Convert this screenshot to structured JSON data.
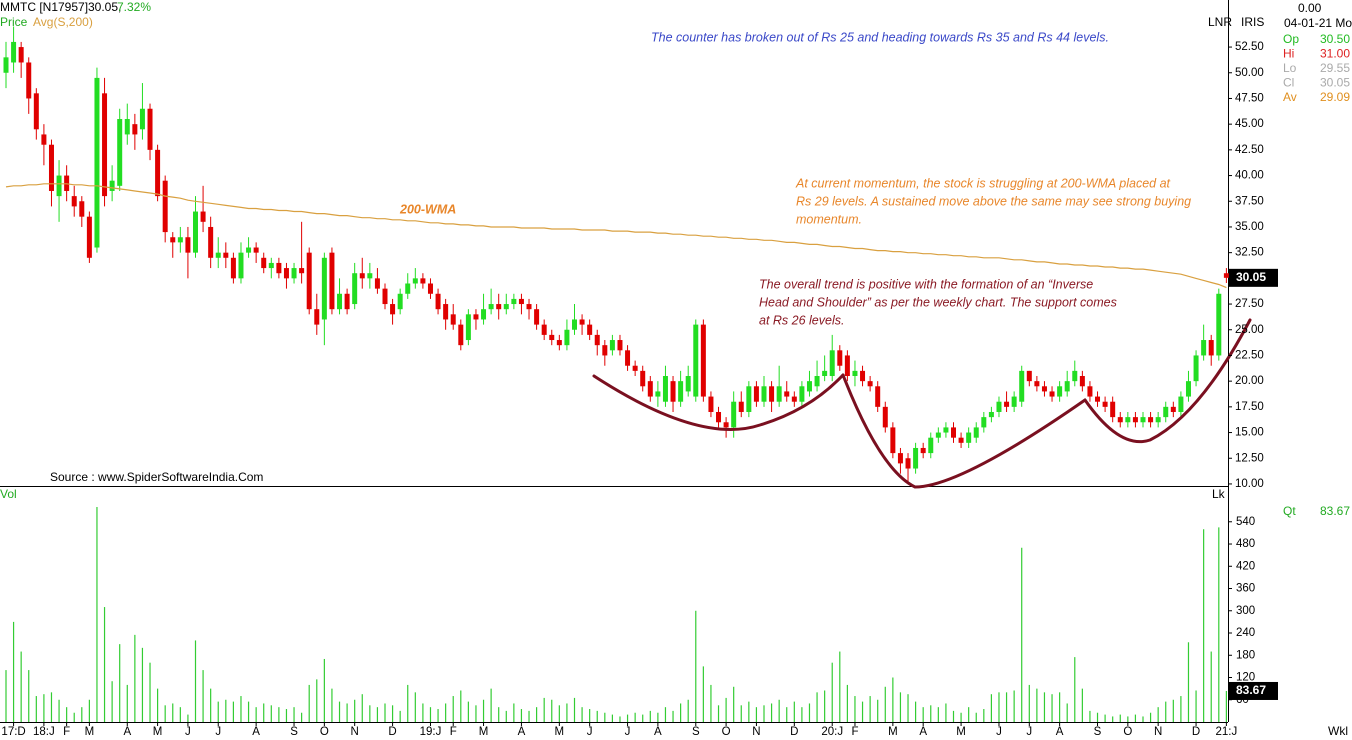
{
  "header": {
    "symbol": "MMTC [N17957]",
    "price": "30.05,",
    "change": "7.32%",
    "price_label": "Price",
    "avg_label": "Avg(S,200)",
    "vol_label": "Vol",
    "lnr": "LNR",
    "iris": "IRIS",
    "zero": "0.00",
    "date": "04-01-21 Mo",
    "lk": "Lk",
    "qt": "Qt",
    "qt_value": "83.67",
    "period": "Wkl",
    "source": "Source : www.SpiderSoftwareIndia.Com"
  },
  "info": [
    {
      "label": "Op",
      "value": "30.50",
      "color": "#22bb22"
    },
    {
      "label": "Hi",
      "value": "31.00",
      "color": "#dd2222"
    },
    {
      "label": "Lo",
      "value": "29.55",
      "color": "#aaaaaa"
    },
    {
      "label": "Cl",
      "value": "30.05",
      "color": "#aaaaaa"
    },
    {
      "label": "Av",
      "value": "29.09",
      "color": "#e09020"
    }
  ],
  "chart_data": {
    "type": "candlestick",
    "annotations": [
      "The counter has broken out of Rs 25 and heading towards Rs 35 and Rs 44 levels.",
      "At current momentum, the stock is struggling at 200-WMA placed at",
      "Rs 29 levels. A sustained move above the same may see strong buying",
      "momentum.",
      "The overall trend is positive with the formation of an “Inverse",
      "Head and Shoulder” as per the weekly chart. The support comes",
      "at Rs 26 levels.",
      "200-WMA"
    ],
    "categories": [
      null,
      "17:D",
      null,
      null,
      null,
      "18:J",
      null,
      null,
      "F",
      null,
      null,
      "M",
      null,
      null,
      null,
      null,
      "A",
      null,
      null,
      null,
      "M",
      null,
      null,
      null,
      "J",
      null,
      null,
      null,
      "J",
      null,
      null,
      null,
      null,
      "A",
      null,
      null,
      null,
      null,
      "S",
      null,
      null,
      null,
      "O",
      null,
      null,
      null,
      "N",
      null,
      null,
      null,
      null,
      "D",
      null,
      null,
      null,
      null,
      "19:J",
      null,
      null,
      "F",
      null,
      null,
      null,
      "M",
      null,
      null,
      null,
      null,
      "A",
      null,
      null,
      null,
      null,
      "M",
      null,
      null,
      null,
      "J",
      null,
      null,
      null,
      null,
      "J",
      null,
      null,
      null,
      "A",
      null,
      null,
      null,
      null,
      "S",
      null,
      null,
      null,
      "O",
      null,
      null,
      null,
      "N",
      null,
      null,
      null,
      null,
      "D",
      null,
      null,
      null,
      null,
      "20:J",
      null,
      null,
      "F",
      null,
      null,
      null,
      null,
      "M",
      null,
      null,
      null,
      "A",
      null,
      null,
      null,
      null,
      "M",
      null,
      null,
      null,
      null,
      "J",
      null,
      null,
      null,
      "J",
      null,
      null,
      null,
      "A",
      null,
      null,
      null,
      null,
      "S",
      null,
      null,
      null,
      "O",
      null,
      null,
      null,
      "N",
      null,
      null,
      null,
      null,
      "D",
      null,
      null,
      null,
      "21:J"
    ],
    "open": [
      50,
      51,
      52.5,
      51,
      48,
      44,
      43,
      38,
      40,
      38,
      37.5,
      36,
      33,
      48,
      38.5,
      39,
      44,
      45,
      44.5,
      46.5,
      42.5,
      39.5,
      34,
      33.5,
      34,
      32.5,
      36.5,
      35,
      32,
      32.5,
      32,
      30,
      32.5,
      33,
      32,
      31,
      31.5,
      31,
      30,
      31,
      32.5,
      27,
      26,
      32.5,
      27,
      28.5,
      27.5,
      30.5,
      30,
      30,
      29,
      27.5,
      27,
      28.5,
      29.5,
      30,
      29.5,
      28.5,
      27.5,
      26.5,
      25.5,
      24,
      26.5,
      26,
      27,
      27.5,
      27,
      27.5,
      28,
      27.5,
      27,
      25.5,
      24.5,
      24,
      23.5,
      25,
      26,
      25.5,
      24.5,
      23.5,
      23,
      24,
      23,
      21.5,
      21,
      20,
      18.5,
      18,
      20,
      18,
      19,
      18.5,
      25.5,
      18.5,
      17,
      16,
      15.5,
      18,
      17,
      19.5,
      18,
      19.5,
      18,
      19,
      18.5,
      18,
      19,
      19.5,
      20.5,
      20.5,
      23,
      22.5,
      20.5,
      21,
      20,
      19.5,
      17.5,
      15.5,
      13,
      12.5,
      11.5,
      13.5,
      13,
      14.5,
      15,
      15.5,
      14.5,
      14,
      14.5,
      15.5,
      16.5,
      17,
      18,
      17.5,
      18,
      21,
      20,
      19.5,
      19,
      18.5,
      19,
      20,
      20.5,
      19.5,
      18.5,
      18,
      18,
      16.5,
      16,
      16.5,
      16,
      16.5,
      16,
      16.5,
      17.5,
      17,
      18.5,
      20,
      22.5,
      24,
      22.5,
      30.5
    ],
    "high": [
      53,
      54.5,
      53,
      51.5,
      48.5,
      45,
      43.5,
      41.5,
      41,
      39,
      38,
      36.5,
      50.5,
      49.5,
      41,
      46.5,
      47,
      46,
      49,
      47,
      43,
      40,
      34.5,
      35,
      35,
      38,
      39,
      36,
      34,
      33.5,
      32.5,
      33.5,
      34,
      33.5,
      32.5,
      32,
      32,
      31.5,
      31.5,
      35.5,
      33,
      28.5,
      32.5,
      33,
      30,
      29,
      31.5,
      32,
      31.5,
      31,
      29.5,
      28,
      29,
      30.5,
      31,
      30.5,
      30,
      29,
      28,
      27.5,
      26,
      27,
      27,
      28.5,
      29,
      28.5,
      28.5,
      28.5,
      28.5,
      28,
      27.5,
      26,
      25,
      24.5,
      26,
      27.5,
      26.5,
      26,
      25,
      24,
      24.5,
      24.5,
      23.5,
      22,
      21.5,
      20.5,
      20,
      21.5,
      20.5,
      21,
      21.5,
      26,
      26,
      19,
      17.5,
      16.5,
      19,
      19,
      20,
      20,
      20.5,
      20,
      21.5,
      20,
      19,
      20,
      21,
      22,
      22.5,
      24.5,
      23.5,
      23,
      22,
      21.5,
      20.5,
      20,
      18,
      16,
      13.5,
      13,
      14,
      14,
      15,
      15.5,
      16,
      16,
      15,
      15.5,
      16,
      17,
      17.5,
      18.5,
      19,
      19,
      21.5,
      21,
      20.5,
      20,
      19.5,
      20,
      21,
      22,
      21,
      20,
      19,
      18.5,
      18.5,
      17,
      17,
      17,
      17,
      17,
      17,
      18,
      18,
      19,
      21,
      23,
      25.5,
      24.5,
      29,
      31
    ],
    "low": [
      48.5,
      50,
      49.5,
      46,
      43.5,
      41,
      37,
      35.5,
      37.5,
      36,
      35,
      31.5,
      32.5,
      37,
      37.5,
      38.5,
      43,
      42.5,
      43.5,
      41.5,
      37.5,
      33.5,
      32,
      32.5,
      30,
      32,
      34.5,
      31,
      31,
      31,
      29.5,
      29.5,
      32,
      31.5,
      30.5,
      30,
      30,
      29,
      29.5,
      29.5,
      26.5,
      24.5,
      23.5,
      26.5,
      26.5,
      26.5,
      27,
      29,
      29,
      28.5,
      27,
      25.5,
      26.5,
      28,
      29,
      29,
      28,
      26.5,
      25,
      25,
      23,
      23.5,
      25,
      25.5,
      26.5,
      26,
      26.5,
      27,
      26.5,
      26,
      25,
      24,
      23.5,
      23,
      23,
      24.5,
      24.5,
      24,
      22.5,
      21.5,
      22.5,
      22.5,
      21,
      20.5,
      19,
      18,
      17.5,
      17.5,
      17,
      17.5,
      18.5,
      18,
      18,
      16.5,
      15.5,
      14.5,
      14.5,
      16.5,
      16.5,
      17.5,
      17.5,
      17,
      17.5,
      18,
      17.5,
      17.5,
      18.5,
      19,
      20,
      20,
      21,
      20,
      19.5,
      19.5,
      19,
      17,
      15,
      12.5,
      11,
      10.2,
      11,
      12.5,
      12.5,
      14,
      14.5,
      14,
      13.5,
      13.5,
      14,
      15,
      16,
      16.5,
      17,
      17,
      17.5,
      19.5,
      19,
      18.5,
      18,
      18,
      18.5,
      19.5,
      19,
      18,
      17.5,
      17,
      16,
      15.5,
      15.5,
      15.5,
      15.5,
      15.5,
      15.5,
      16,
      16.5,
      16.5,
      18,
      19.5,
      22,
      21.5,
      22,
      29.55
    ],
    "close": [
      51.5,
      53,
      51,
      47.5,
      44.5,
      43,
      38.5,
      40,
      38.5,
      37,
      36,
      32,
      49.5,
      38,
      39.5,
      45.5,
      45.5,
      44,
      46.5,
      42.5,
      38,
      34.5,
      33.5,
      34,
      32.5,
      36.5,
      35.5,
      32,
      32.5,
      32,
      30,
      32.5,
      33,
      32.5,
      31,
      31.5,
      30.5,
      30,
      31,
      30.5,
      27,
      25.5,
      32,
      27,
      28.5,
      27,
      30.5,
      30,
      30.5,
      29,
      27.5,
      26.5,
      28.5,
      29.5,
      30,
      29.5,
      28.5,
      27,
      26,
      25.5,
      23.5,
      26.5,
      26,
      27,
      27.5,
      27,
      27.5,
      28,
      27.5,
      27,
      25.5,
      24.5,
      24,
      23.5,
      25,
      26,
      25.5,
      24.5,
      23.5,
      22.5,
      24,
      23,
      21.5,
      21,
      19.5,
      18.5,
      19,
      20.5,
      18,
      20,
      20.5,
      25.5,
      18.5,
      17,
      16,
      15.5,
      18,
      17,
      19.5,
      18,
      19.5,
      18,
      19.5,
      18.5,
      18,
      19.5,
      20,
      20.5,
      21,
      23,
      21.5,
      20.5,
      21,
      20,
      19.5,
      17.5,
      15.5,
      13,
      12,
      11.5,
      13.5,
      13,
      14.5,
      15,
      15.5,
      14.5,
      14,
      15,
      15.5,
      16.5,
      17,
      18,
      17.5,
      18.5,
      21,
      20,
      19.5,
      19,
      18.5,
      19.5,
      20,
      21,
      19.5,
      18.5,
      18,
      17.5,
      16.5,
      16,
      16.5,
      16,
      16.5,
      16,
      16.5,
      17.5,
      17,
      18.5,
      20,
      22.5,
      24,
      22.5,
      28.5,
      30.05
    ],
    "up_color": "#22dd22",
    "down_color": "#e00000",
    "name": "Price",
    "series": [
      {
        "name": "Avg(S,200)",
        "color": "#d9a040",
        "values": [
          38.9,
          39.0,
          39.0,
          39.1,
          39.1,
          39.2,
          39.2,
          39.2,
          39.2,
          39.1,
          39.1,
          39.0,
          39.0,
          38.9,
          38.8,
          38.7,
          38.6,
          38.5,
          38.4,
          38.3,
          38.2,
          38.0,
          37.9,
          37.8,
          37.6,
          37.5,
          37.4,
          37.3,
          37.2,
          37.1,
          37.0,
          36.9,
          36.8,
          36.8,
          36.7,
          36.7,
          36.6,
          36.6,
          36.5,
          36.5,
          36.4,
          36.3,
          36.3,
          36.2,
          36.1,
          36.1,
          36.0,
          35.9,
          35.9,
          35.8,
          35.8,
          35.7,
          35.7,
          35.6,
          35.6,
          35.5,
          35.4,
          35.4,
          35.3,
          35.3,
          35.2,
          35.2,
          35.1,
          35.1,
          35.0,
          35.0,
          35.0,
          35.0,
          34.9,
          34.9,
          34.9,
          34.9,
          34.8,
          34.8,
          34.8,
          34.8,
          34.7,
          34.7,
          34.7,
          34.7,
          34.6,
          34.6,
          34.6,
          34.5,
          34.5,
          34.5,
          34.4,
          34.4,
          34.3,
          34.3,
          34.2,
          34.2,
          34.1,
          34.1,
          34.0,
          34.0,
          33.9,
          33.9,
          33.8,
          33.8,
          33.7,
          33.7,
          33.6,
          33.5,
          33.5,
          33.4,
          33.3,
          33.3,
          33.2,
          33.1,
          33.1,
          33.0,
          32.9,
          32.9,
          32.8,
          32.7,
          32.7,
          32.6,
          32.6,
          32.5,
          32.5,
          32.4,
          32.4,
          32.3,
          32.3,
          32.2,
          32.2,
          32.1,
          32.1,
          32.0,
          32.0,
          32.0,
          31.9,
          31.8,
          31.8,
          31.7,
          31.6,
          31.6,
          31.5,
          31.4,
          31.4,
          31.3,
          31.3,
          31.2,
          31.2,
          31.1,
          31.1,
          31.0,
          31.0,
          30.9,
          30.9,
          30.8,
          30.7,
          30.6,
          30.5,
          30.4,
          30.2,
          30.0,
          29.8,
          29.6,
          29.4,
          29.1
        ]
      }
    ],
    "ylim": [
      9.8,
      56.3
    ],
    "yticks": [
      {
        "value": 10,
        "label": "10.00"
      },
      {
        "value": 12.5,
        "label": "12.50"
      },
      {
        "value": 15,
        "label": "15.00"
      },
      {
        "value": 17.5,
        "label": "17.50"
      },
      {
        "value": 20,
        "label": "20.00"
      },
      {
        "value": 22.5,
        "label": "22.50"
      },
      {
        "value": 25,
        "label": "25.00"
      },
      {
        "value": 27.5,
        "label": "27.50"
      },
      {
        "value": 30,
        "label": "30.00"
      },
      {
        "value": 32.5,
        "label": "32.50"
      },
      {
        "value": 35,
        "label": "35.00"
      },
      {
        "value": 37.5,
        "label": "37.50"
      },
      {
        "value": 40,
        "label": "40.00"
      },
      {
        "value": 42.5,
        "label": "42.50"
      },
      {
        "value": 45,
        "label": "45.00"
      },
      {
        "value": 47.5,
        "label": "47.50"
      },
      {
        "value": 50,
        "label": "50.00"
      },
      {
        "value": 52.5,
        "label": "52.50"
      }
    ],
    "volume": {
      "color": "#33cc33",
      "ylim": [
        0,
        623
      ],
      "yticks": [
        60,
        120,
        180,
        240,
        300,
        360,
        420,
        480,
        540
      ],
      "values": [
        140,
        270,
        190,
        140,
        70,
        75,
        80,
        60,
        40,
        25,
        40,
        60,
        580,
        310,
        110,
        210,
        100,
        235,
        200,
        160,
        90,
        45,
        50,
        40,
        20,
        220,
        140,
        90,
        55,
        60,
        55,
        70,
        55,
        40,
        50,
        45,
        40,
        35,
        40,
        25,
        100,
        115,
        170,
        90,
        55,
        50,
        60,
        75,
        45,
        40,
        50,
        45,
        30,
        100,
        80,
        50,
        40,
        35,
        50,
        70,
        85,
        55,
        45,
        60,
        90,
        40,
        30,
        50,
        35,
        30,
        40,
        65,
        60,
        45,
        50,
        65,
        40,
        35,
        30,
        25,
        20,
        15,
        20,
        25,
        20,
        30,
        25,
        40,
        30,
        50,
        60,
        300,
        150,
        100,
        45,
        65,
        95,
        45,
        55,
        40,
        45,
        50,
        60,
        40,
        55,
        40,
        50,
        80,
        85,
        160,
        190,
        100,
        70,
        55,
        70,
        60,
        95,
        120,
        80,
        75,
        55,
        40,
        45,
        40,
        50,
        30,
        25,
        40,
        25,
        35,
        75,
        80,
        80,
        85,
        470,
        100,
        90,
        80,
        75,
        80,
        50,
        175,
        90,
        30,
        25,
        20,
        15,
        20,
        15,
        20,
        15,
        25,
        40,
        55,
        60,
        70,
        215,
        85,
        520,
        190,
        525,
        83.67
      ]
    }
  }
}
